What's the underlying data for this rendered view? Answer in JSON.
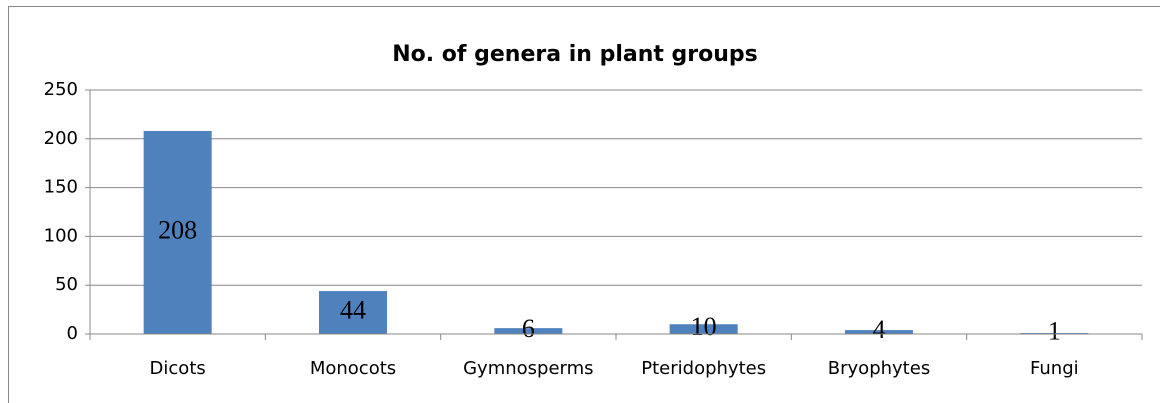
{
  "chart_data": {
    "type": "bar",
    "title": "No. of genera in plant groups",
    "categories": [
      "Dicots",
      "Monocots",
      "Gymnosperms",
      "Pteridophytes",
      "Bryophytes",
      "Fungi"
    ],
    "values": [
      208,
      44,
      6,
      10,
      4,
      1
    ],
    "color": "#4f81bd",
    "ylim": [
      0,
      250
    ],
    "yticks": [
      0,
      50,
      100,
      150,
      200,
      250
    ],
    "grid": true
  }
}
